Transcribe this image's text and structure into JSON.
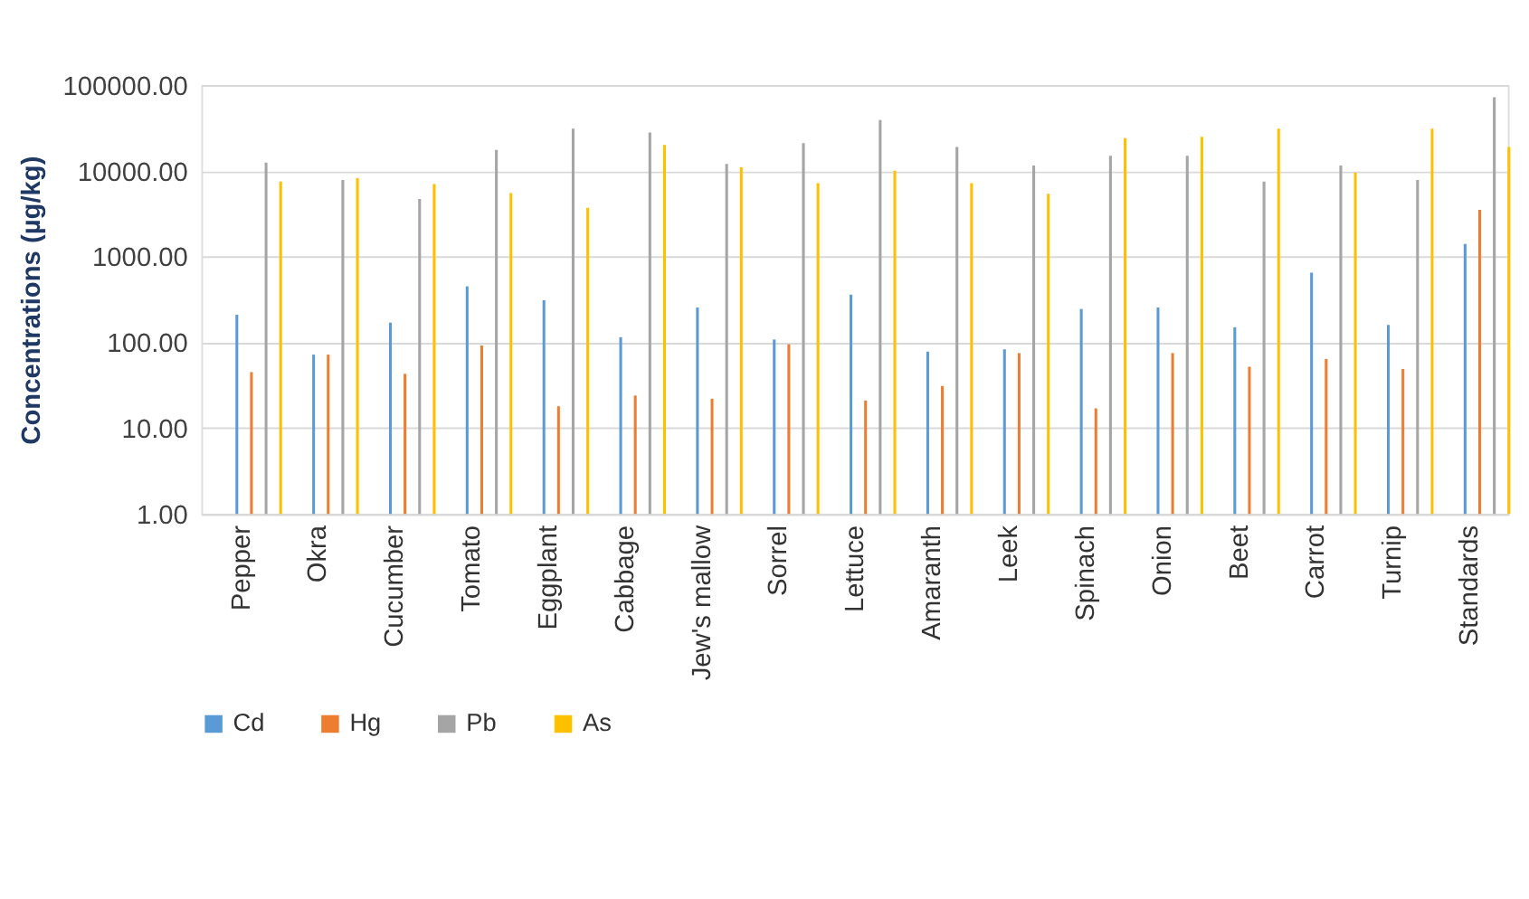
{
  "chart_data": {
    "type": "bar",
    "ylabel": "Concentrations (µg/kg)",
    "log": true,
    "grid": "y",
    "legend": "bottom",
    "categories": [
      "Pepper",
      "Okra",
      "Cucumber",
      "Tomato",
      "Eggplant",
      "Cabbage",
      "Jew's mallow",
      "Sorrel",
      "Lettuce",
      "Amaranth",
      "Leek",
      "Spinach",
      "Onion",
      "Beet",
      "Carrot",
      "Turnip",
      "Standards"
    ],
    "ylim": [
      1,
      100000
    ],
    "yticks": [
      {
        "value": 1,
        "label": "1.00"
      },
      {
        "value": 10,
        "label": "10.00"
      },
      {
        "value": 100,
        "label": "100.00"
      },
      {
        "value": 1000,
        "label": "1000.00"
      },
      {
        "value": 10000,
        "label": "10000.00"
      },
      {
        "value": 100000,
        "label": "100000.00"
      }
    ],
    "series": [
      {
        "name": "Cd",
        "color": "#5b9bd5",
        "values": [
          210,
          72,
          170,
          450,
          310,
          115,
          255,
          108,
          360,
          78,
          83,
          245,
          255,
          150,
          650,
          160,
          1400
        ]
      },
      {
        "name": "Hg",
        "color": "#ed7d31",
        "values": [
          45,
          72,
          43,
          92,
          18,
          24,
          22,
          95,
          21,
          31,
          75,
          17,
          75,
          52,
          64,
          49,
          3500
        ]
      },
      {
        "name": "Pb",
        "color": "#a5a5a5",
        "values": [
          12500,
          7800,
          4700,
          17500,
          31000,
          28000,
          12000,
          21000,
          39000,
          19000,
          11500,
          15000,
          15000,
          7500,
          11500,
          7800,
          72000
        ]
      },
      {
        "name": "As",
        "color": "#ffc000",
        "values": [
          7500,
          8200,
          7000,
          5500,
          3700,
          20000,
          11000,
          7200,
          10000,
          7200,
          5400,
          24000,
          25000,
          31000,
          9500,
          31000,
          19000
        ]
      }
    ]
  }
}
